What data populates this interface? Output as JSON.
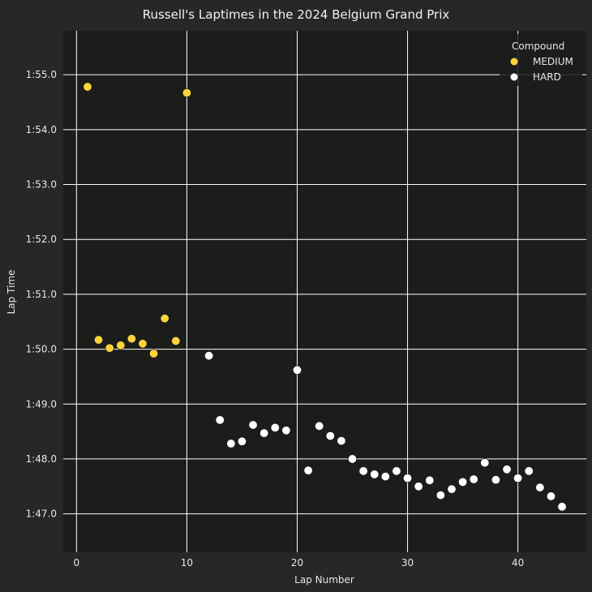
{
  "chart_data": {
    "type": "scatter",
    "title": "Russell's Laptimes in the 2024 Belgium Grand Prix",
    "xlabel": "Lap Number",
    "ylabel": "Lap Time",
    "xlim": [
      -1.2,
      46.2
    ],
    "ylim": [
      106.3,
      115.8
    ],
    "x_ticks": [
      0,
      10,
      20,
      30,
      40
    ],
    "x_tick_labels": [
      "0",
      "10",
      "20",
      "30",
      "40"
    ],
    "y_ticks": [
      107,
      108,
      109,
      110,
      111,
      112,
      113,
      114,
      115
    ],
    "y_tick_labels": [
      "1:47.0",
      "1:48.0",
      "1:49.0",
      "1:50.0",
      "1:51.0",
      "1:52.0",
      "1:53.0",
      "1:54.0",
      "1:55.0"
    ],
    "grid": true,
    "legend_title": "Compound",
    "legend_position": "top-right",
    "series": [
      {
        "name": "MEDIUM",
        "color": "#fdd33b",
        "points": [
          [
            1,
            114.78
          ],
          [
            2,
            110.17
          ],
          [
            3,
            110.02
          ],
          [
            4,
            110.07
          ],
          [
            5,
            110.19
          ],
          [
            6,
            110.1
          ],
          [
            7,
            109.92
          ],
          [
            8,
            110.56
          ],
          [
            9,
            110.15
          ],
          [
            10,
            114.67
          ]
        ]
      },
      {
        "name": "HARD",
        "color": "#ffffff",
        "points": [
          [
            12,
            109.88
          ],
          [
            13,
            108.71
          ],
          [
            14,
            108.28
          ],
          [
            15,
            108.32
          ],
          [
            16,
            108.62
          ],
          [
            17,
            108.47
          ],
          [
            18,
            108.57
          ],
          [
            19,
            108.52
          ],
          [
            20,
            109.62
          ],
          [
            21,
            107.79
          ],
          [
            22,
            108.6
          ],
          [
            23,
            108.42
          ],
          [
            24,
            108.33
          ],
          [
            25,
            108.0
          ],
          [
            26,
            107.78
          ],
          [
            27,
            107.72
          ],
          [
            28,
            107.68
          ],
          [
            29,
            107.78
          ],
          [
            30,
            107.65
          ],
          [
            31,
            107.5
          ],
          [
            32,
            107.61
          ],
          [
            33,
            107.34
          ],
          [
            34,
            107.45
          ],
          [
            35,
            107.58
          ],
          [
            36,
            107.63
          ],
          [
            37,
            107.93
          ],
          [
            38,
            107.62
          ],
          [
            39,
            107.81
          ],
          [
            40,
            107.65
          ],
          [
            41,
            107.78
          ],
          [
            42,
            107.48
          ],
          [
            43,
            107.32
          ],
          [
            44,
            107.13
          ]
        ]
      }
    ]
  },
  "colors": {
    "page_background": "#282725",
    "plot_background": "#1c1c1b",
    "grid": "#ffffff",
    "text": "#e6e6e6"
  }
}
